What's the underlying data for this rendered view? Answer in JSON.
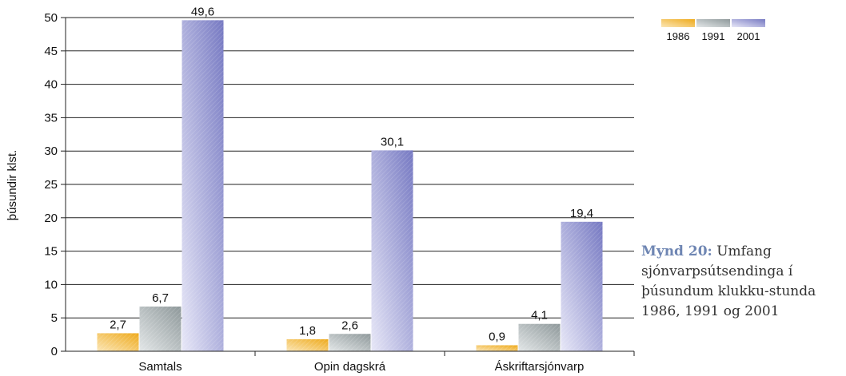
{
  "chart_data": {
    "type": "bar",
    "categories": [
      "Samtals",
      "Opin dagskrá",
      "Áskriftarsjónvarp"
    ],
    "series": [
      {
        "name": "1986",
        "values": [
          2.7,
          1.8,
          0.9
        ],
        "value_labels": [
          "2,7",
          "1,8",
          "0,9"
        ],
        "color": "#f2b530"
      },
      {
        "name": "1991",
        "values": [
          6.7,
          2.6,
          4.1
        ],
        "value_labels": [
          "6,7",
          "2,6",
          "4,1"
        ],
        "color": "#9aa3a5"
      },
      {
        "name": "2001",
        "values": [
          49.6,
          30.1,
          19.4
        ],
        "value_labels": [
          "49,6",
          "30,1",
          "19,4"
        ],
        "color": "#8c8fd0"
      }
    ],
    "ylabel": "þúsundir klst.",
    "ylim": [
      0,
      50
    ],
    "yticks": [
      "0",
      "5",
      "10",
      "15",
      "20",
      "25",
      "30",
      "35",
      "40",
      "45",
      "50"
    ],
    "grid": true,
    "legend": "top-right"
  },
  "caption": {
    "prefix": "Mynd 20:",
    "text": "Umfang sjónvarpsútsendinga í þúsundum klukku-stunda 1986, 1991 og 2001"
  }
}
